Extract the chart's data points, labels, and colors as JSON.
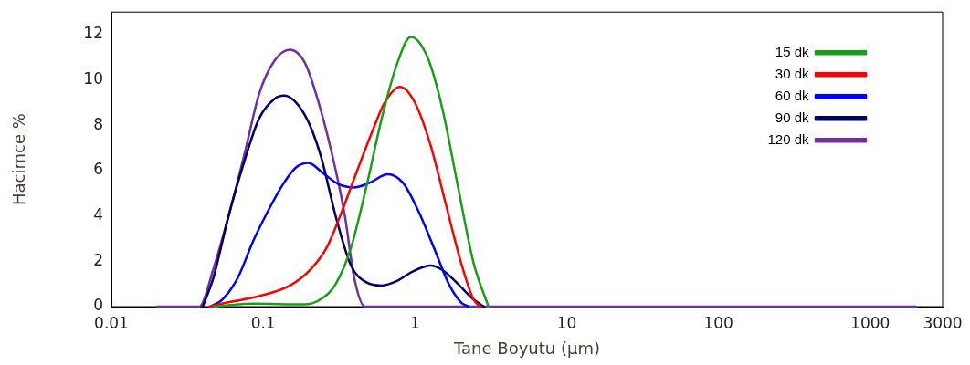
{
  "chart_data": {
    "type": "line",
    "xlabel": "Tane Boyutu (µm)",
    "ylabel": "Hacimce %",
    "log": "x",
    "xlim": [
      0.01,
      3000
    ],
    "xticks": [
      0.01,
      0.1,
      1,
      10,
      100,
      1000,
      3000
    ],
    "ylim": [
      0,
      13
    ],
    "yticks": [
      0,
      2,
      4,
      6,
      8,
      10,
      12
    ],
    "grid": false,
    "legend": "top right",
    "marker": "none",
    "line_style": "solid",
    "series": [
      {
        "name": "15 dk",
        "color": "#1a9e1a",
        "x": [
          0.047,
          0.086,
          0.189,
          0.239,
          0.301,
          0.379,
          0.479,
          0.604,
          0.761,
          0.938,
          1.21,
          1.52,
          1.92,
          2.43,
          3.05
        ],
        "values": [
          0,
          0.13,
          0.1,
          0.32,
          1.0,
          2.6,
          5.3,
          8.3,
          10.7,
          11.9,
          11.0,
          8.7,
          5.3,
          1.95,
          0
        ]
      },
      {
        "name": "30 dk",
        "color": "#ff0000",
        "x": [
          0.044,
          0.059,
          0.094,
          0.15,
          0.207,
          0.262,
          0.33,
          0.416,
          0.525,
          0.631,
          0.797,
          1.0,
          1.27,
          1.6,
          2.01,
          2.43,
          2.7
        ],
        "values": [
          0,
          0.19,
          0.46,
          0.93,
          1.67,
          2.6,
          4.2,
          6.0,
          7.75,
          9.0,
          9.7,
          9.0,
          7.1,
          4.5,
          1.95,
          0.32,
          0
        ]
      },
      {
        "name": "60 dk",
        "color": "#0000ff",
        "x": [
          0.045,
          0.054,
          0.068,
          0.086,
          0.108,
          0.137,
          0.164,
          0.198,
          0.25,
          0.316,
          0.398,
          0.501,
          0.662,
          0.834,
          1.05,
          1.33,
          1.67,
          2.01,
          2.26
        ],
        "values": [
          0,
          0.32,
          1.27,
          2.9,
          4.24,
          5.46,
          6.13,
          6.34,
          5.87,
          5.39,
          5.26,
          5.46,
          5.84,
          5.46,
          4.24,
          2.62,
          1.0,
          0.19,
          0
        ]
      },
      {
        "name": "90 dk",
        "color": "#000066",
        "x": [
          0.04,
          0.047,
          0.059,
          0.075,
          0.094,
          0.119,
          0.137,
          0.189,
          0.239,
          0.301,
          0.379,
          0.479,
          0.604,
          0.761,
          0.96,
          1.27,
          1.52,
          1.92,
          2.43,
          2.85
        ],
        "values": [
          0,
          1.27,
          3.97,
          6.4,
          8.3,
          9.17,
          9.31,
          8.43,
          6.68,
          3.97,
          1.81,
          1.07,
          0.93,
          1.13,
          1.54,
          1.81,
          1.61,
          1.0,
          0.32,
          0
        ]
      },
      {
        "name": "120 dk",
        "color": "#7030a0",
        "x": [
          0.02,
          0.038,
          0.047,
          0.059,
          0.075,
          0.094,
          0.119,
          0.15,
          0.189,
          0.239,
          0.301,
          0.346,
          0.398,
          0.468,
          2000
        ],
        "values": [
          0,
          0,
          1.67,
          3.97,
          6.68,
          9.38,
          10.86,
          11.34,
          10.74,
          8.7,
          6.0,
          3.97,
          1.27,
          0,
          0
        ]
      }
    ]
  }
}
